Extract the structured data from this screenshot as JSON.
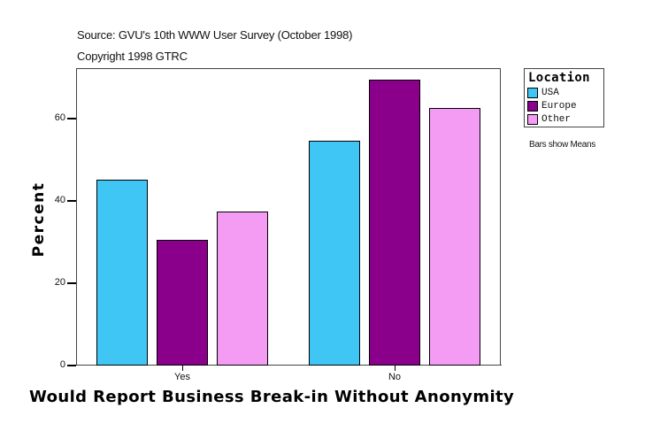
{
  "header": {
    "source": "Source: GVU's 10th WWW User Survey (October 1998)",
    "copyright": "Copyright 1998 GTRC"
  },
  "legend": {
    "title": "Location",
    "items": [
      {
        "label": "USA",
        "color": "#40C6F4"
      },
      {
        "label": "Europe",
        "color": "#8B008B"
      },
      {
        "label": "Other",
        "color": "#F49CF4"
      }
    ]
  },
  "note": "Bars show Means",
  "axes": {
    "y_title": "Percent",
    "x_title": "Would Report Business Break-in Without Anonymity",
    "y_ticks": [
      "0",
      "20",
      "40",
      "60"
    ],
    "x_ticks": [
      "Yes",
      "No"
    ]
  },
  "chart_data": {
    "type": "bar",
    "title": "",
    "subtitle": "Source: GVU's 10th WWW User Survey (October 1998) / Copyright 1998 GTRC",
    "xlabel": "Would Report Business Break-in Without Anonymity",
    "ylabel": "Percent",
    "categories": [
      "Yes",
      "No"
    ],
    "series": [
      {
        "name": "USA",
        "color": "#40C6F4",
        "values": [
          45.2,
          54.6
        ]
      },
      {
        "name": "Europe",
        "color": "#8B008B",
        "values": [
          30.5,
          69.5
        ]
      },
      {
        "name": "Other",
        "color": "#F49CF4",
        "values": [
          37.4,
          62.6
        ]
      }
    ],
    "ylim": [
      0,
      72
    ],
    "yticks": [
      0,
      20,
      40,
      60
    ],
    "grid": false,
    "legend_title": "Location",
    "legend_position": "right",
    "annotations": [
      "Bars show Means"
    ]
  }
}
